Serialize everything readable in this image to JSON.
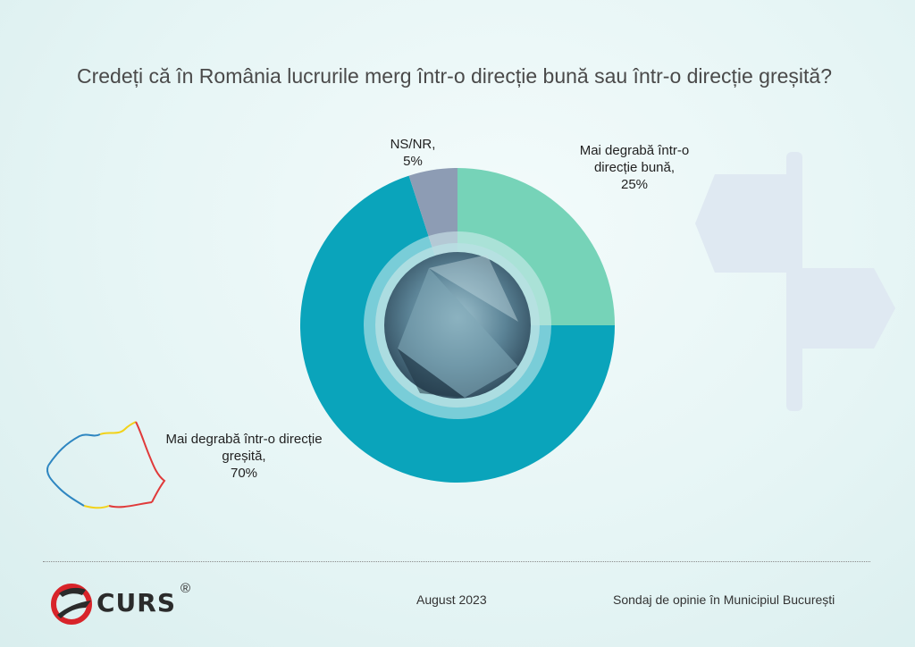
{
  "title": "Credeți că în România lucrurile merg într-o direcție bună sau într-o direcție greșită?",
  "chart_data": {
    "type": "pie",
    "title": "Credeți că în România lucrurile merg într-o direcție bună sau într-o direcție greșită?",
    "slices": [
      {
        "label": "Mai degrabă într-o direcție bună",
        "value": 25,
        "display": "25%",
        "color": "#76d3b8"
      },
      {
        "label": "Mai degrabă într-o direcție greșită",
        "value": 70,
        "display": "70%",
        "color": "#0aa4bb"
      },
      {
        "label": "NS/NR",
        "value": 5,
        "display": "5%",
        "color": "#8d9cb4"
      }
    ],
    "donut": true,
    "start": "12 o'clock",
    "direction": "clockwise"
  },
  "labels": {
    "ns_name": "NS/NR,",
    "ns_pct": "5%",
    "good_name": "Mai degrabă într-o direcție bună,",
    "good_pct": "25%",
    "bad_name": "Mai degrabă într-o direcție greșită,",
    "bad_pct": "70%"
  },
  "footer": {
    "logo": "CURS",
    "logo_reg": "®",
    "date": "August 2023",
    "survey": "Sondaj de opinie în Municipiul București"
  },
  "decorations": {
    "map": "romania-map-icon",
    "sign": "signpost-icon"
  }
}
